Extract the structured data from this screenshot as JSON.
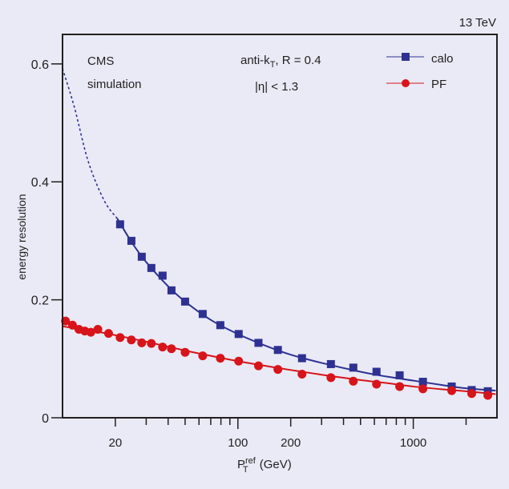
{
  "chart_data": {
    "type": "line",
    "title": "",
    "corner_label": "13 TeV",
    "annotations": {
      "experiment": "CMS",
      "experiment_sub": "simulation",
      "algo_prefix": "anti-k",
      "algo_sub": "T",
      "algo_suffix": ", R = 0.4",
      "eta_cut": "|η| < 1.3"
    },
    "xlabel_main": "P",
    "xlabel_sup": "ref",
    "xlabel_sub": "T",
    "xlabel_unit": " (GeV)",
    "ylabel": "energy resolution",
    "xscale": "log",
    "xlim": [
      10,
      3000
    ],
    "ylim": [
      0,
      0.65
    ],
    "x_ticks_labeled": [
      {
        "value": 20,
        "label": "20"
      },
      {
        "value": 100,
        "label": "100"
      },
      {
        "value": 200,
        "label": "200"
      },
      {
        "value": 1000,
        "label": "1000"
      }
    ],
    "x_ticks_minor": [
      30,
      40,
      50,
      60,
      70,
      80,
      90,
      300,
      400,
      500,
      600,
      700,
      800,
      900,
      2000
    ],
    "y_ticks": [
      {
        "value": 0,
        "label": "0"
      },
      {
        "value": 0.2,
        "label": "0.2"
      },
      {
        "value": 0.4,
        "label": "0.4"
      },
      {
        "value": 0.6,
        "label": "0.6"
      }
    ],
    "grid": false,
    "legend_position": "top-right",
    "series": [
      {
        "name": "calo",
        "color": "#2e3192",
        "marker": "square",
        "x": [
          21.3,
          24.7,
          28.3,
          32.1,
          37.2,
          41.8,
          50,
          63,
          79.4,
          101,
          131,
          169,
          232,
          339,
          455,
          617,
          836,
          1135,
          1656,
          2153,
          2660
        ],
        "y": [
          0.328,
          0.3,
          0.273,
          0.254,
          0.241,
          0.216,
          0.197,
          0.176,
          0.157,
          0.142,
          0.127,
          0.115,
          0.101,
          0.091,
          0.085,
          0.078,
          0.072,
          0.061,
          0.053,
          0.047,
          0.045
        ],
        "fit_extrapolated": {
          "x": [
            10,
            11.7,
            14.0,
            17.3,
            20.5
          ],
          "y": [
            0.592,
            0.526,
            0.435,
            0.368,
            0.338
          ]
        },
        "fit": {
          "x": [
            20.5,
            25,
            30,
            40,
            50,
            70,
            100,
            150,
            200,
            300,
            500,
            700,
            1000,
            1500,
            2000,
            2950
          ],
          "y": [
            0.338,
            0.296,
            0.264,
            0.223,
            0.197,
            0.166,
            0.142,
            0.12,
            0.107,
            0.093,
            0.078,
            0.07,
            0.063,
            0.055,
            0.05,
            0.046
          ]
        }
      },
      {
        "name": "PF",
        "color": "#d7141a",
        "marker": "circle",
        "x": [
          10.4,
          11.4,
          12.4,
          13.4,
          14.5,
          15.9,
          18.3,
          21.3,
          24.7,
          28.3,
          32.1,
          37.2,
          41.8,
          50,
          63,
          79.4,
          101,
          131,
          169,
          232,
          339,
          455,
          617,
          836,
          1135,
          1656,
          2153,
          2660
        ],
        "y": [
          0.164,
          0.157,
          0.15,
          0.147,
          0.145,
          0.15,
          0.143,
          0.136,
          0.132,
          0.127,
          0.126,
          0.12,
          0.117,
          0.111,
          0.105,
          0.101,
          0.096,
          0.088,
          0.082,
          0.074,
          0.068,
          0.062,
          0.057,
          0.053,
          0.049,
          0.046,
          0.041,
          0.038
        ],
        "fit": {
          "x": [
            10,
            15,
            20,
            30,
            50,
            70,
            100,
            150,
            200,
            300,
            500,
            700,
            1000,
            1500,
            2000,
            2950
          ],
          "y": [
            0.155,
            0.147,
            0.14,
            0.129,
            0.114,
            0.105,
            0.096,
            0.087,
            0.081,
            0.073,
            0.064,
            0.059,
            0.053,
            0.048,
            0.045,
            0.04
          ]
        }
      }
    ]
  }
}
